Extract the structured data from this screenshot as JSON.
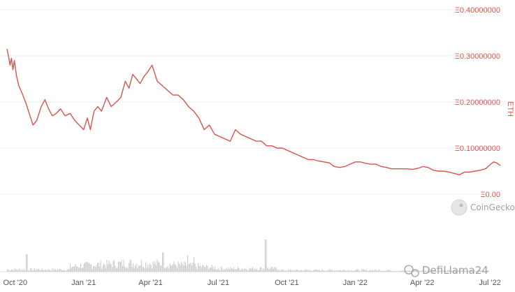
{
  "chart_data": {
    "type": "line",
    "title": "",
    "xlabel": "",
    "ylabel": "ETH",
    "y_axis_position": "right",
    "ylim": [
      0,
      0.4
    ],
    "y_ticks": [
      {
        "value": 0.4,
        "label": "Ξ0.40000000"
      },
      {
        "value": 0.3,
        "label": "Ξ0.30000000"
      },
      {
        "value": 0.2,
        "label": "Ξ0.20000000"
      },
      {
        "value": 0.1,
        "label": "Ξ0.10000000"
      },
      {
        "value": 0.0,
        "label": "Ξ0.00"
      }
    ],
    "x_ticks": [
      {
        "date": "2020-10-01",
        "label": "Oct '20"
      },
      {
        "date": "2021-01-01",
        "label": "Jan '21"
      },
      {
        "date": "2021-04-01",
        "label": "Apr '21"
      },
      {
        "date": "2021-07-01",
        "label": "Jul '21"
      },
      {
        "date": "2021-10-01",
        "label": "Oct '21"
      },
      {
        "date": "2022-01-01",
        "label": "Jan '22"
      },
      {
        "date": "2022-04-01",
        "label": "Apr '22"
      },
      {
        "date": "2022-07-01",
        "label": "Jul '22"
      }
    ],
    "xlim": [
      "2020-09-20",
      "2022-07-15"
    ],
    "grid": "horizontal",
    "line_color": "#d9534f",
    "tick_color": "#d9534f",
    "volume_color": "#c8ccd0",
    "series": [
      {
        "x": [
          "2020-09-20",
          "2020-09-22",
          "2020-09-24",
          "2020-09-26",
          "2020-09-28",
          "2020-09-30",
          "2020-10-03",
          "2020-10-06",
          "2020-10-10",
          "2020-10-15",
          "2020-10-20",
          "2020-10-25",
          "2020-10-30",
          "2020-11-05",
          "2020-11-10",
          "2020-11-15",
          "2020-11-20",
          "2020-11-25",
          "2020-12-01",
          "2020-12-07",
          "2020-12-14",
          "2020-12-20",
          "2020-12-26",
          "2021-01-01",
          "2021-01-06",
          "2021-01-10",
          "2021-01-15",
          "2021-01-20",
          "2021-01-25",
          "2021-02-01",
          "2021-02-07",
          "2021-02-14",
          "2021-02-20",
          "2021-02-26",
          "2021-03-03",
          "2021-03-08",
          "2021-03-13",
          "2021-03-18",
          "2021-03-23",
          "2021-03-28",
          "2021-04-03",
          "2021-04-10",
          "2021-04-17",
          "2021-04-24",
          "2021-05-01",
          "2021-05-08",
          "2021-05-15",
          "2021-05-22",
          "2021-05-29",
          "2021-06-05",
          "2021-06-12",
          "2021-06-19",
          "2021-06-26",
          "2021-07-03",
          "2021-07-10",
          "2021-07-17",
          "2021-07-24",
          "2021-07-31",
          "2021-08-07",
          "2021-08-14",
          "2021-08-21",
          "2021-08-28",
          "2021-09-04",
          "2021-09-11",
          "2021-09-18",
          "2021-09-25",
          "2021-10-02",
          "2021-10-09",
          "2021-10-16",
          "2021-10-23",
          "2021-10-30",
          "2021-11-06",
          "2021-11-13",
          "2021-11-20",
          "2021-11-27",
          "2021-12-04",
          "2021-12-11",
          "2021-12-18",
          "2021-12-25",
          "2022-01-01",
          "2022-01-08",
          "2022-01-15",
          "2022-01-22",
          "2022-01-29",
          "2022-02-05",
          "2022-02-12",
          "2022-02-19",
          "2022-02-26",
          "2022-03-05",
          "2022-03-12",
          "2022-03-19",
          "2022-03-26",
          "2022-04-02",
          "2022-04-09",
          "2022-04-16",
          "2022-04-23",
          "2022-04-30",
          "2022-05-07",
          "2022-05-14",
          "2022-05-21",
          "2022-05-28",
          "2022-06-04",
          "2022-06-11",
          "2022-06-18",
          "2022-06-25",
          "2022-07-02",
          "2022-07-06",
          "2022-07-10",
          "2022-07-15"
        ],
        "y": [
          0.315,
          0.3,
          0.28,
          0.295,
          0.27,
          0.29,
          0.255,
          0.235,
          0.22,
          0.2,
          0.175,
          0.15,
          0.16,
          0.19,
          0.205,
          0.185,
          0.17,
          0.175,
          0.185,
          0.17,
          0.175,
          0.16,
          0.15,
          0.14,
          0.165,
          0.14,
          0.18,
          0.19,
          0.18,
          0.21,
          0.19,
          0.2,
          0.21,
          0.245,
          0.23,
          0.26,
          0.25,
          0.24,
          0.255,
          0.265,
          0.28,
          0.245,
          0.235,
          0.225,
          0.215,
          0.215,
          0.205,
          0.19,
          0.18,
          0.165,
          0.14,
          0.15,
          0.13,
          0.125,
          0.12,
          0.115,
          0.14,
          0.13,
          0.125,
          0.12,
          0.115,
          0.115,
          0.105,
          0.105,
          0.1,
          0.1,
          0.095,
          0.09,
          0.085,
          0.08,
          0.075,
          0.075,
          0.072,
          0.07,
          0.068,
          0.06,
          0.058,
          0.06,
          0.065,
          0.07,
          0.07,
          0.067,
          0.065,
          0.065,
          0.06,
          0.058,
          0.055,
          0.055,
          0.055,
          0.055,
          0.054,
          0.056,
          0.06,
          0.058,
          0.052,
          0.05,
          0.05,
          0.048,
          0.045,
          0.042,
          0.048,
          0.048,
          0.05,
          0.052,
          0.055,
          0.065,
          0.07,
          0.068,
          0.062
        ]
      }
    ]
  },
  "watermarks": {
    "brand": "CoinGecko",
    "social": "DefiLlama24"
  }
}
